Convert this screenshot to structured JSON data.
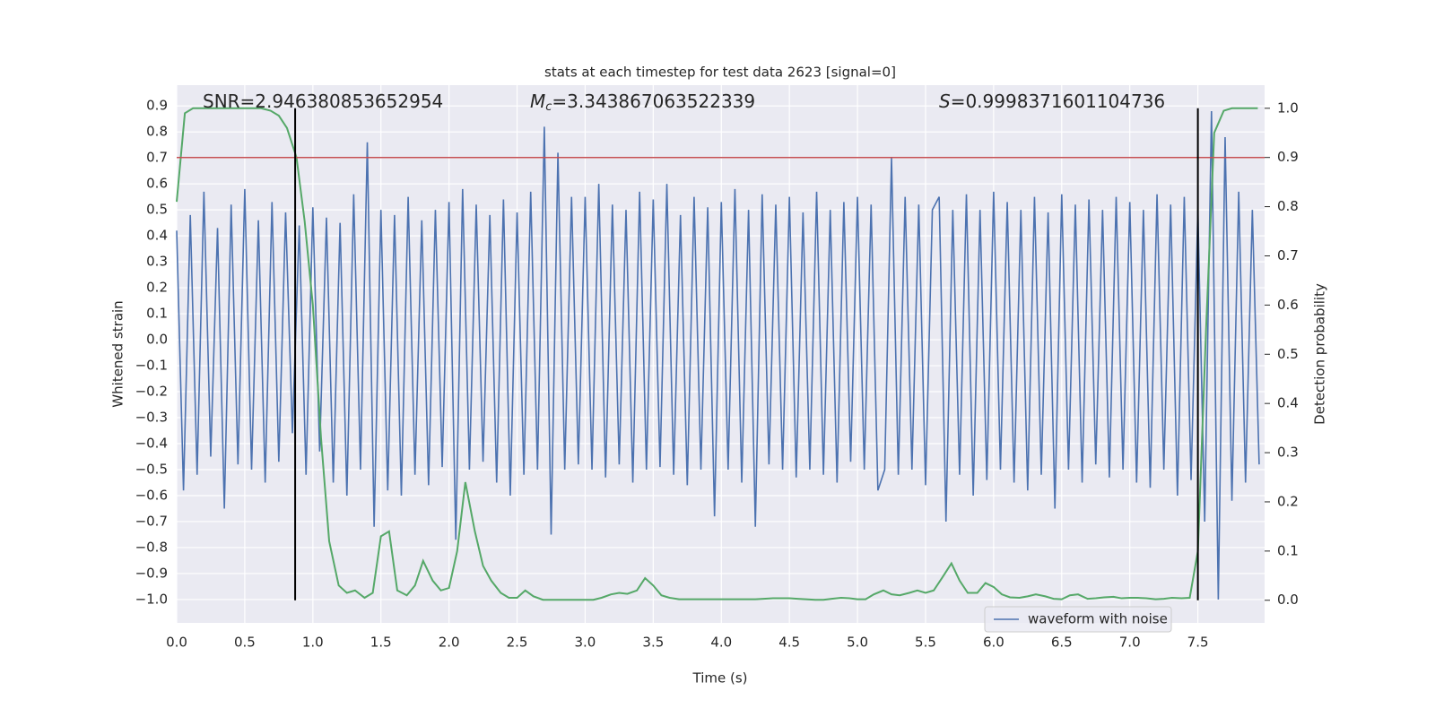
{
  "chart_data": {
    "type": "line",
    "title": "stats at each timestep for test data 2623 [signal=0]",
    "x_label": "Time (s)",
    "y_label": "Whitened strain",
    "y2_label": "Detection probability",
    "xlim": [
      0,
      7.99
    ],
    "ylim": [
      -1.09,
      0.98
    ],
    "y2lim": [
      -0.046,
      1.047
    ],
    "xticks": [
      {
        "value": 0,
        "label": "0.0"
      },
      0.5,
      {
        "value": 1,
        "label": "1.0"
      },
      1.5,
      {
        "value": 2,
        "label": "2.0"
      },
      2.5,
      {
        "value": 3,
        "label": "3.0"
      },
      3.5,
      {
        "value": 4,
        "label": "4.0"
      },
      4.5,
      {
        "value": 5,
        "label": "5.0"
      },
      5.5,
      {
        "value": 6,
        "label": "6.0"
      },
      6.5,
      {
        "value": 7,
        "label": "7.0"
      },
      7.5
    ],
    "yticks": [
      {
        "value": -1,
        "label": "−1.0"
      },
      {
        "value": -0.9,
        "label": "−0.9"
      },
      {
        "value": -0.8,
        "label": "−0.8"
      },
      {
        "value": -0.7,
        "label": "−0.7"
      },
      {
        "value": -0.6,
        "label": "−0.6"
      },
      {
        "value": -0.5,
        "label": "−0.5"
      },
      {
        "value": -0.4,
        "label": "−0.4"
      },
      {
        "value": -0.3,
        "label": "−0.3"
      },
      {
        "value": -0.2,
        "label": "−0.2"
      },
      {
        "value": -0.1,
        "label": "−0.1"
      },
      {
        "value": 0,
        "label": "0.0"
      },
      0.1,
      0.2,
      0.3,
      0.4,
      0.5,
      0.6,
      0.7,
      0.8,
      0.9
    ],
    "y2ticks": [
      {
        "value": 0,
        "label": "0.0"
      },
      0.1,
      0.2,
      0.3,
      0.4,
      0.5,
      0.6,
      0.7,
      0.8,
      0.9,
      {
        "value": 1,
        "label": "1.0"
      }
    ],
    "grid": true,
    "legend": "lower right",
    "threshold": {
      "value": 0.9,
      "axis": "y2",
      "color": "#c44e52"
    },
    "vlines": {
      "values": [
        0.87,
        7.5
      ],
      "color": "#000000"
    },
    "annotations": [
      {
        "text": "SNR=2.946380853652954"
      },
      {
        "symbol": "M",
        "subscript": "c",
        "text": "=3.343867063522339"
      },
      {
        "symbol": "S",
        "text": "=0.9998371601104736"
      }
    ],
    "series": [
      {
        "name": "waveform with noise",
        "color": "#4c72b0",
        "x": [
          0,
          0.05,
          0.1,
          0.15,
          0.2,
          0.25,
          0.3,
          0.35,
          0.4,
          0.45,
          0.5,
          0.55,
          0.6,
          0.65,
          0.7,
          0.75,
          0.8,
          0.85,
          0.9,
          0.95,
          1,
          1.05,
          1.1,
          1.15,
          1.2,
          1.25,
          1.3,
          1.35,
          1.4,
          1.45,
          1.5,
          1.55,
          1.6,
          1.65,
          1.7,
          1.75,
          1.8,
          1.85,
          1.9,
          1.95,
          2,
          2.05,
          2.1,
          2.15,
          2.2,
          2.25,
          2.3,
          2.35,
          2.4,
          2.45,
          2.5,
          2.55,
          2.6,
          2.65,
          2.7,
          2.75,
          2.8,
          2.85,
          2.9,
          2.95,
          3,
          3.05,
          3.1,
          3.15,
          3.2,
          3.25,
          3.3,
          3.35,
          3.4,
          3.45,
          3.5,
          3.55,
          3.6,
          3.65,
          3.7,
          3.75,
          3.8,
          3.85,
          3.9,
          3.95,
          4,
          4.05,
          4.1,
          4.15,
          4.2,
          4.25,
          4.3,
          4.35,
          4.4,
          4.45,
          4.5,
          4.55,
          4.6,
          4.65,
          4.7,
          4.75,
          4.8,
          4.85,
          4.9,
          4.95,
          5,
          5.05,
          5.1,
          5.15,
          5.2,
          5.25,
          5.3,
          5.35,
          5.4,
          5.45,
          5.5,
          5.55,
          5.6,
          5.65,
          5.7,
          5.75,
          5.8,
          5.85,
          5.9,
          5.95,
          6,
          6.05,
          6.1,
          6.15,
          6.2,
          6.25,
          6.3,
          6.35,
          6.4,
          6.45,
          6.5,
          6.55,
          6.6,
          6.65,
          6.7,
          6.75,
          6.8,
          6.85,
          6.9,
          6.95,
          7,
          7.05,
          7.1,
          7.15,
          7.2,
          7.25,
          7.3,
          7.35,
          7.4,
          7.45,
          7.5,
          7.55,
          7.6,
          7.65,
          7.7,
          7.75,
          7.8,
          7.85,
          7.9,
          7.95
        ],
        "values": [
          0.42,
          -0.58,
          0.48,
          -0.52,
          0.57,
          -0.45,
          0.43,
          -0.65,
          0.52,
          -0.48,
          0.58,
          -0.5,
          0.46,
          -0.55,
          0.53,
          -0.47,
          0.49,
          -0.36,
          0.44,
          -0.52,
          0.51,
          -0.43,
          0.47,
          -0.55,
          0.45,
          -0.6,
          0.56,
          -0.5,
          0.76,
          -0.72,
          0.5,
          -0.58,
          0.48,
          -0.6,
          0.55,
          -0.52,
          0.46,
          -0.56,
          0.5,
          -0.49,
          0.53,
          -0.77,
          0.58,
          -0.5,
          0.52,
          -0.47,
          0.48,
          -0.55,
          0.54,
          -0.6,
          0.49,
          -0.52,
          0.57,
          -0.5,
          0.82,
          -0.75,
          0.72,
          -0.5,
          0.55,
          -0.48,
          0.55,
          -0.5,
          0.6,
          -0.53,
          0.52,
          -0.48,
          0.5,
          -0.55,
          0.57,
          -0.5,
          0.54,
          -0.49,
          0.6,
          -0.52,
          0.48,
          -0.56,
          0.55,
          -0.5,
          0.51,
          -0.68,
          0.53,
          -0.5,
          0.58,
          -0.55,
          0.5,
          -0.72,
          0.56,
          -0.48,
          0.52,
          -0.5,
          0.55,
          -0.53,
          0.49,
          -0.5,
          0.57,
          -0.52,
          0.5,
          -0.55,
          0.53,
          -0.47,
          0.55,
          -0.5,
          0.52,
          -0.58,
          -0.5,
          0.7,
          -0.52,
          0.55,
          -0.5,
          0.52,
          -0.56,
          0.5,
          0.55,
          -0.7,
          0.5,
          -0.52,
          0.56,
          -0.6,
          0.5,
          -0.54,
          0.57,
          -0.5,
          0.53,
          -0.55,
          0.5,
          -0.58,
          0.55,
          -0.52,
          0.49,
          -0.65,
          0.56,
          -0.5,
          0.52,
          -0.55,
          0.54,
          -0.48,
          0.5,
          -0.53,
          0.55,
          -0.5,
          0.53,
          -0.55,
          0.5,
          -0.57,
          0.56,
          -0.5,
          0.52,
          -0.6,
          0.55,
          -0.54,
          0.5,
          -0.7,
          0.88,
          -1.0,
          0.78,
          -0.62,
          0.57,
          -0.55,
          0.5,
          -0.48
        ]
      },
      {
        "color": "#55a868",
        "axis": "y2",
        "x": [
          0,
          0.06,
          0.12,
          0.19,
          0.25,
          0.31,
          0.38,
          0.44,
          0.5,
          0.56,
          0.62,
          0.69,
          0.75,
          0.81,
          0.88,
          0.94,
          1,
          1.06,
          1.12,
          1.19,
          1.25,
          1.31,
          1.38,
          1.44,
          1.5,
          1.56,
          1.62,
          1.69,
          1.75,
          1.81,
          1.88,
          1.94,
          2,
          2.06,
          2.12,
          2.19,
          2.25,
          2.31,
          2.38,
          2.44,
          2.5,
          2.56,
          2.62,
          2.69,
          2.75,
          2.81,
          2.88,
          2.94,
          3,
          3.06,
          3.12,
          3.19,
          3.25,
          3.31,
          3.38,
          3.44,
          3.5,
          3.56,
          3.62,
          3.69,
          3.75,
          3.81,
          3.88,
          3.94,
          4,
          4.06,
          4.12,
          4.19,
          4.25,
          4.31,
          4.38,
          4.44,
          4.5,
          4.56,
          4.62,
          4.69,
          4.75,
          4.81,
          4.88,
          4.94,
          5,
          5.06,
          5.12,
          5.19,
          5.25,
          5.31,
          5.38,
          5.44,
          5.5,
          5.56,
          5.62,
          5.69,
          5.75,
          5.81,
          5.88,
          5.94,
          6,
          6.06,
          6.12,
          6.19,
          6.25,
          6.31,
          6.38,
          6.44,
          6.5,
          6.56,
          6.62,
          6.69,
          6.75,
          6.81,
          6.88,
          6.94,
          7,
          7.06,
          7.12,
          7.19,
          7.25,
          7.31,
          7.38,
          7.44,
          7.5,
          7.56,
          7.62,
          7.69,
          7.75,
          7.81,
          7.88,
          7.94
        ],
        "values": [
          0.81,
          0.99,
          1.0,
          1.0,
          1.0,
          1.0,
          1.0,
          1.0,
          1.0,
          1.0,
          1.0,
          0.995,
          0.985,
          0.96,
          0.9,
          0.77,
          0.6,
          0.33,
          0.12,
          0.03,
          0.015,
          0.02,
          0.005,
          0.015,
          0.13,
          0.14,
          0.02,
          0.01,
          0.03,
          0.08,
          0.04,
          0.02,
          0.025,
          0.1,
          0.24,
          0.14,
          0.07,
          0.04,
          0.015,
          0.005,
          0.005,
          0.02,
          0.008,
          0.001,
          0.001,
          0.001,
          0.001,
          0.001,
          0.001,
          0.001,
          0.005,
          0.012,
          0.015,
          0.013,
          0.02,
          0.045,
          0.03,
          0.01,
          0.005,
          0.002,
          0.002,
          0.002,
          0.002,
          0.002,
          0.002,
          0.002,
          0.002,
          0.002,
          0.002,
          0.003,
          0.004,
          0.004,
          0.004,
          0.003,
          0.002,
          0.001,
          0.001,
          0.003,
          0.005,
          0.004,
          0.002,
          0.002,
          0.012,
          0.02,
          0.012,
          0.01,
          0.015,
          0.02,
          0.015,
          0.02,
          0.045,
          0.075,
          0.04,
          0.015,
          0.015,
          0.035,
          0.027,
          0.012,
          0.006,
          0.005,
          0.008,
          0.012,
          0.008,
          0.003,
          0.002,
          0.01,
          0.012,
          0.003,
          0.004,
          0.006,
          0.007,
          0.004,
          0.005,
          0.005,
          0.004,
          0.002,
          0.003,
          0.005,
          0.004,
          0.005,
          0.1,
          0.55,
          0.95,
          0.995,
          1.0,
          1.0,
          1.0,
          1.0
        ]
      }
    ]
  }
}
